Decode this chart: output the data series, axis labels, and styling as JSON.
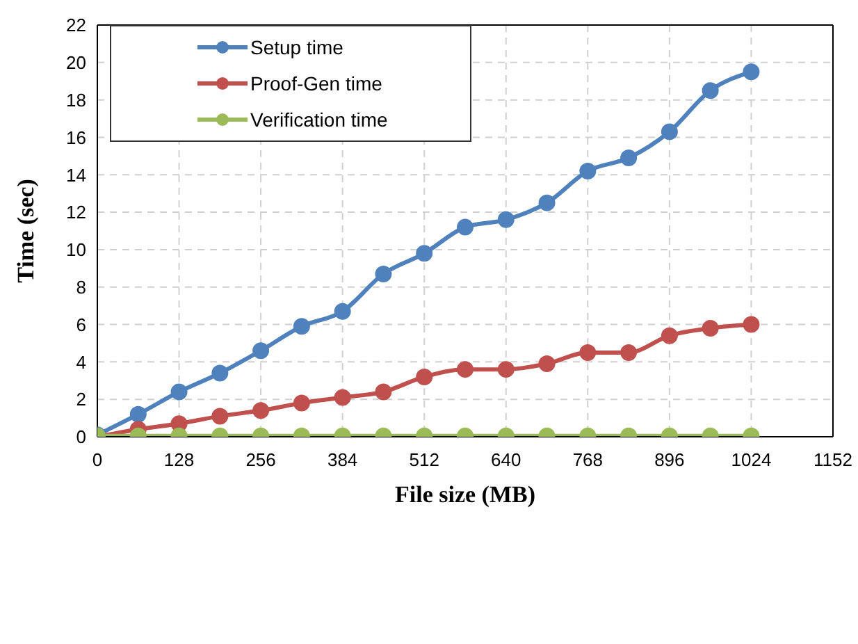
{
  "chart_data": {
    "type": "line",
    "xlabel": "File size (MB)",
    "ylabel": "Time (sec)",
    "x": [
      0,
      64,
      128,
      192,
      256,
      320,
      384,
      448,
      512,
      576,
      640,
      704,
      768,
      832,
      896,
      960,
      1024
    ],
    "series": [
      {
        "name": "Setup time",
        "color": "#4f81bd",
        "values": [
          0.1,
          1.2,
          2.4,
          3.4,
          4.6,
          5.9,
          6.7,
          8.7,
          9.8,
          11.2,
          11.6,
          12.5,
          14.2,
          14.9,
          16.3,
          18.5,
          19.5
        ]
      },
      {
        "name": "Proof-Gen time",
        "color": "#c0504d",
        "values": [
          0,
          0.4,
          0.7,
          1.1,
          1.4,
          1.8,
          2.1,
          2.4,
          3.2,
          3.6,
          3.6,
          3.9,
          4.5,
          4.5,
          5.4,
          5.8,
          6.0
        ]
      },
      {
        "name": "Verification time",
        "color": "#9bbb59",
        "values": [
          0.05,
          0.05,
          0.05,
          0.05,
          0.05,
          0.05,
          0.05,
          0.05,
          0.05,
          0.05,
          0.05,
          0.05,
          0.05,
          0.05,
          0.05,
          0.05,
          0.05
        ]
      }
    ],
    "xlim": [
      0,
      1152
    ],
    "xticks": [
      0,
      128,
      256,
      384,
      512,
      640,
      768,
      896,
      1024,
      1152
    ],
    "ylim": [
      0,
      22
    ],
    "yticks": [
      0,
      2,
      4,
      6,
      8,
      10,
      12,
      14,
      16,
      18,
      20,
      22
    ],
    "grid": true,
    "legend": "top left",
    "marker": "circle",
    "line_style": "solid"
  }
}
